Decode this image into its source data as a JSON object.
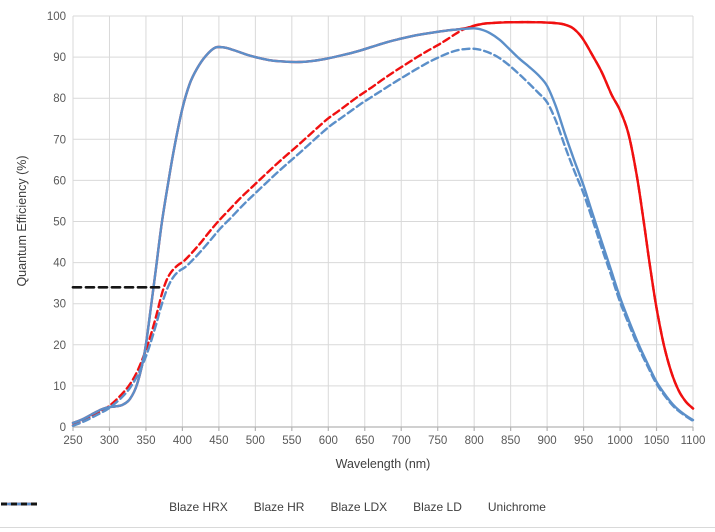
{
  "chart_data": {
    "type": "line",
    "title": "",
    "xlabel": "Wavelength (nm)",
    "ylabel": "Quantum Efficiency (%)",
    "xlim": [
      250,
      1100
    ],
    "ylim": [
      0,
      100
    ],
    "x_ticks": [
      250,
      300,
      350,
      400,
      450,
      500,
      550,
      600,
      650,
      700,
      750,
      800,
      850,
      900,
      950,
      1000,
      1050,
      1100
    ],
    "y_ticks": [
      0,
      10,
      20,
      30,
      40,
      50,
      60,
      70,
      80,
      90,
      100
    ],
    "grid": true,
    "legend_position": "bottom",
    "series": [
      {
        "name": "Blaze HRX",
        "color": "#f01010",
        "dash": "solid",
        "points": [
          [
            250,
            1
          ],
          [
            262,
            1.8
          ],
          [
            275,
            3
          ],
          [
            288,
            4.2
          ],
          [
            298,
            4.8
          ],
          [
            308,
            5.0
          ],
          [
            318,
            5.4
          ],
          [
            328,
            6.8
          ],
          [
            338,
            10.5
          ],
          [
            348,
            18
          ],
          [
            356,
            28
          ],
          [
            364,
            39
          ],
          [
            372,
            50
          ],
          [
            381,
            60
          ],
          [
            390,
            69
          ],
          [
            400,
            77.5
          ],
          [
            410,
            83.5
          ],
          [
            420,
            87.2
          ],
          [
            432,
            90.3
          ],
          [
            445,
            92.3
          ],
          [
            458,
            92.3
          ],
          [
            472,
            91.6
          ],
          [
            488,
            90.6
          ],
          [
            505,
            89.8
          ],
          [
            522,
            89.2
          ],
          [
            540,
            88.9
          ],
          [
            560,
            88.8
          ],
          [
            580,
            89.1
          ],
          [
            600,
            89.7
          ],
          [
            620,
            90.5
          ],
          [
            640,
            91.4
          ],
          [
            660,
            92.5
          ],
          [
            680,
            93.6
          ],
          [
            700,
            94.5
          ],
          [
            720,
            95.3
          ],
          [
            740,
            95.9
          ],
          [
            760,
            96.4
          ],
          [
            775,
            96.7
          ],
          [
            790,
            97.1
          ],
          [
            800,
            97.6
          ],
          [
            812,
            98.1
          ],
          [
            825,
            98.3
          ],
          [
            840,
            98.45
          ],
          [
            860,
            98.5
          ],
          [
            880,
            98.5
          ],
          [
            895,
            98.45
          ],
          [
            910,
            98.3
          ],
          [
            922,
            98
          ],
          [
            934,
            97.2
          ],
          [
            944,
            95.6
          ],
          [
            952,
            93.6
          ],
          [
            962,
            90.5
          ],
          [
            975,
            86.3
          ],
          [
            988,
            81
          ],
          [
            1000,
            77
          ],
          [
            1012,
            71
          ],
          [
            1024,
            60
          ],
          [
            1034,
            48
          ],
          [
            1042,
            38
          ],
          [
            1050,
            29
          ],
          [
            1060,
            20
          ],
          [
            1070,
            13.5
          ],
          [
            1080,
            9
          ],
          [
            1090,
            6.2
          ],
          [
            1100,
            4.5
          ]
        ]
      },
      {
        "name": "Blaze HR",
        "color": "#f01010",
        "dash": "dashed",
        "points": [
          [
            250,
            0.4
          ],
          [
            263,
            1.4
          ],
          [
            276,
            2.6
          ],
          [
            288,
            3.8
          ],
          [
            298,
            4.9
          ],
          [
            308,
            6.4
          ],
          [
            318,
            8.2
          ],
          [
            328,
            10.4
          ],
          [
            338,
            13.5
          ],
          [
            348,
            17.8
          ],
          [
            356,
            22
          ],
          [
            364,
            27
          ],
          [
            372,
            32.5
          ],
          [
            379,
            36
          ],
          [
            386,
            38
          ],
          [
            394,
            39.4
          ],
          [
            402,
            40.4
          ],
          [
            412,
            42.2
          ],
          [
            424,
            44.6
          ],
          [
            437,
            47.5
          ],
          [
            450,
            50.2
          ],
          [
            465,
            53
          ],
          [
            480,
            55.8
          ],
          [
            495,
            58.3
          ],
          [
            510,
            60.8
          ],
          [
            525,
            63.3
          ],
          [
            540,
            65.7
          ],
          [
            555,
            68
          ],
          [
            570,
            70.4
          ],
          [
            585,
            72.8
          ],
          [
            600,
            75.1
          ],
          [
            615,
            77
          ],
          [
            630,
            79
          ],
          [
            645,
            80.9
          ],
          [
            660,
            82.7
          ],
          [
            675,
            84.6
          ],
          [
            690,
            86.4
          ],
          [
            705,
            88.1
          ],
          [
            720,
            89.8
          ],
          [
            735,
            91.4
          ],
          [
            750,
            92.9
          ],
          [
            762,
            94.2
          ],
          [
            774,
            95.6
          ],
          [
            786,
            96.8
          ],
          [
            797,
            97.5
          ],
          [
            810,
            98.05
          ],
          [
            825,
            98.3
          ],
          [
            840,
            98.45
          ],
          [
            860,
            98.5
          ],
          [
            880,
            98.5
          ],
          [
            895,
            98.45
          ],
          [
            910,
            98.3
          ],
          [
            922,
            98
          ],
          [
            934,
            97.2
          ],
          [
            944,
            95.6
          ],
          [
            952,
            93.6
          ],
          [
            962,
            90.5
          ],
          [
            975,
            86.3
          ],
          [
            988,
            81
          ],
          [
            1000,
            77
          ],
          [
            1012,
            71
          ],
          [
            1024,
            60
          ],
          [
            1034,
            48
          ],
          [
            1042,
            38
          ],
          [
            1050,
            29
          ],
          [
            1060,
            20
          ],
          [
            1070,
            13.5
          ],
          [
            1080,
            9
          ],
          [
            1090,
            6.2
          ],
          [
            1100,
            4.5
          ]
        ]
      },
      {
        "name": "Blaze LDX",
        "color": "#5b8fc9",
        "dash": "solid",
        "points": [
          [
            250,
            1
          ],
          [
            262,
            1.8
          ],
          [
            275,
            3
          ],
          [
            288,
            4.2
          ],
          [
            298,
            4.8
          ],
          [
            308,
            5.0
          ],
          [
            318,
            5.4
          ],
          [
            328,
            6.8
          ],
          [
            338,
            10.5
          ],
          [
            348,
            18
          ],
          [
            356,
            28
          ],
          [
            364,
            39
          ],
          [
            372,
            50
          ],
          [
            381,
            60
          ],
          [
            390,
            69
          ],
          [
            400,
            77.5
          ],
          [
            410,
            83.5
          ],
          [
            420,
            87.2
          ],
          [
            432,
            90.3
          ],
          [
            445,
            92.3
          ],
          [
            458,
            92.3
          ],
          [
            472,
            91.6
          ],
          [
            488,
            90.6
          ],
          [
            505,
            89.8
          ],
          [
            522,
            89.2
          ],
          [
            540,
            88.9
          ],
          [
            560,
            88.8
          ],
          [
            580,
            89.1
          ],
          [
            600,
            89.7
          ],
          [
            620,
            90.5
          ],
          [
            640,
            91.4
          ],
          [
            660,
            92.5
          ],
          [
            680,
            93.6
          ],
          [
            700,
            94.5
          ],
          [
            720,
            95.3
          ],
          [
            740,
            95.9
          ],
          [
            760,
            96.4
          ],
          [
            775,
            96.7
          ],
          [
            790,
            96.9
          ],
          [
            800,
            97
          ],
          [
            810,
            96.7
          ],
          [
            822,
            95.8
          ],
          [
            835,
            94.2
          ],
          [
            848,
            92
          ],
          [
            862,
            89.6
          ],
          [
            875,
            87.7
          ],
          [
            888,
            85.6
          ],
          [
            900,
            83
          ],
          [
            912,
            78
          ],
          [
            925,
            71
          ],
          [
            938,
            64.5
          ],
          [
            950,
            58.7
          ],
          [
            963,
            51.5
          ],
          [
            975,
            45
          ],
          [
            988,
            38
          ],
          [
            1000,
            31.5
          ],
          [
            1013,
            25.5
          ],
          [
            1025,
            20.3
          ],
          [
            1038,
            15.3
          ],
          [
            1050,
            11
          ],
          [
            1063,
            7.6
          ],
          [
            1075,
            5
          ],
          [
            1088,
            3.1
          ],
          [
            1100,
            1.7
          ]
        ]
      },
      {
        "name": "Blaze LD",
        "color": "#5b8fc9",
        "dash": "dashed",
        "points": [
          [
            250,
            0.3
          ],
          [
            263,
            1.2
          ],
          [
            276,
            2.3
          ],
          [
            288,
            3.4
          ],
          [
            298,
            4.4
          ],
          [
            308,
            5.8
          ],
          [
            318,
            7.4
          ],
          [
            328,
            9.5
          ],
          [
            338,
            12.4
          ],
          [
            348,
            16.3
          ],
          [
            356,
            20.3
          ],
          [
            364,
            25
          ],
          [
            372,
            30
          ],
          [
            380,
            34
          ],
          [
            388,
            36.6
          ],
          [
            396,
            38
          ],
          [
            404,
            38.9
          ],
          [
            414,
            40.6
          ],
          [
            426,
            42.9
          ],
          [
            439,
            45.6
          ],
          [
            452,
            48.3
          ],
          [
            467,
            51
          ],
          [
            482,
            53.8
          ],
          [
            497,
            56.4
          ],
          [
            512,
            58.9
          ],
          [
            527,
            61.4
          ],
          [
            542,
            63.8
          ],
          [
            557,
            66.1
          ],
          [
            572,
            68.5
          ],
          [
            587,
            70.9
          ],
          [
            602,
            73.2
          ],
          [
            617,
            75.1
          ],
          [
            632,
            77
          ],
          [
            647,
            78.9
          ],
          [
            662,
            80.6
          ],
          [
            677,
            82.3
          ],
          [
            692,
            84
          ],
          [
            707,
            85.6
          ],
          [
            722,
            87.2
          ],
          [
            737,
            88.7
          ],
          [
            752,
            90
          ],
          [
            765,
            91
          ],
          [
            778,
            91.7
          ],
          [
            790,
            92
          ],
          [
            802,
            92
          ],
          [
            812,
            91.6
          ],
          [
            824,
            90.8
          ],
          [
            836,
            89.6
          ],
          [
            848,
            88
          ],
          [
            862,
            85.8
          ],
          [
            875,
            83.6
          ],
          [
            888,
            81.3
          ],
          [
            900,
            79
          ],
          [
            912,
            74.5
          ],
          [
            925,
            68
          ],
          [
            938,
            62
          ],
          [
            950,
            56.8
          ],
          [
            963,
            50
          ],
          [
            975,
            43.5
          ],
          [
            988,
            36.8
          ],
          [
            1000,
            30.4
          ],
          [
            1013,
            24.6
          ],
          [
            1025,
            19.5
          ],
          [
            1038,
            14.7
          ],
          [
            1050,
            10.5
          ],
          [
            1063,
            7.2
          ],
          [
            1075,
            4.7
          ],
          [
            1088,
            2.9
          ],
          [
            1100,
            1.5
          ]
        ]
      },
      {
        "name": "Unichrome",
        "color": "#151515",
        "dash": "dashed-bold",
        "points": [
          [
            250,
            34
          ],
          [
            373,
            34
          ]
        ]
      }
    ]
  },
  "colors": {
    "background": "#ffffff",
    "grid": "#d9d9d9",
    "axis_line": "#b3b3b3",
    "tick_text": "#595959",
    "axis_title_text": "#404040"
  }
}
